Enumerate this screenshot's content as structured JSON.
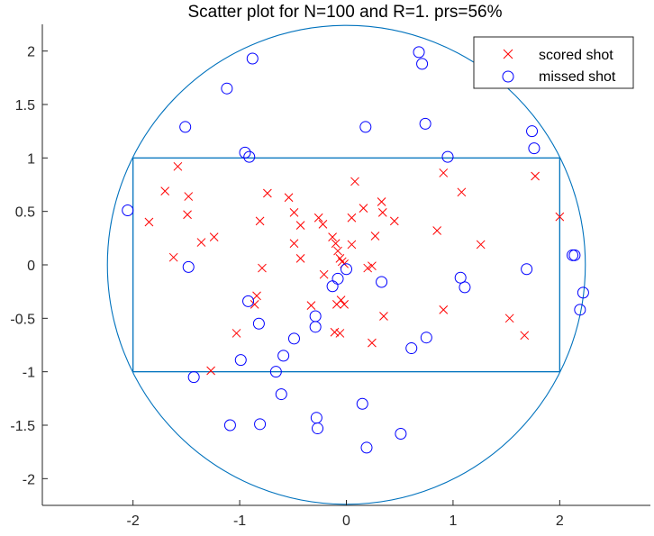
{
  "chart_data": {
    "type": "scatter",
    "title": "Scatter plot for N=100 and R=1. prs=56%",
    "xlabel": "",
    "ylabel": "",
    "xlim": [
      -2.85,
      2.85
    ],
    "ylim": [
      -2.25,
      2.25
    ],
    "x_ticks": [
      "-2",
      "-1",
      "0",
      "1",
      "2"
    ],
    "y_ticks": [
      "2",
      "1.5",
      "1",
      "0.5",
      "0",
      "-0.5",
      "-1",
      "-1.5",
      "-2"
    ],
    "grid": false,
    "legend_position": "top-right",
    "shapes": {
      "rectangle": {
        "x_min": -2,
        "x_max": 2,
        "y_min": -1,
        "y_max": 1,
        "color": "#0072BD"
      },
      "circle": {
        "cx": 0,
        "cy": 0,
        "r": 2.24,
        "color": "#0072BD"
      }
    },
    "series": [
      {
        "name": "scored shot",
        "marker": "x",
        "color": "#FF0000",
        "points": [
          [
            -1.85,
            0.4
          ],
          [
            -1.7,
            0.69
          ],
          [
            -1.58,
            0.92
          ],
          [
            -1.62,
            0.07
          ],
          [
            -1.48,
            0.64
          ],
          [
            -1.49,
            0.47
          ],
          [
            -1.36,
            0.21
          ],
          [
            -1.24,
            0.26
          ],
          [
            -1.27,
            -0.99
          ],
          [
            -1.03,
            -0.64
          ],
          [
            -0.74,
            0.67
          ],
          [
            -0.81,
            0.41
          ],
          [
            -0.79,
            -0.03
          ],
          [
            -0.84,
            -0.29
          ],
          [
            -0.86,
            -0.37
          ],
          [
            -0.54,
            0.63
          ],
          [
            -0.49,
            0.49
          ],
          [
            -0.49,
            0.2
          ],
          [
            -0.43,
            0.37
          ],
          [
            -0.43,
            0.06
          ],
          [
            -0.26,
            0.44
          ],
          [
            -0.22,
            0.38
          ],
          [
            -0.21,
            -0.09
          ],
          [
            -0.33,
            -0.38
          ],
          [
            -0.13,
            0.26
          ],
          [
            -0.1,
            0.2
          ],
          [
            -0.08,
            0.13
          ],
          [
            -0.06,
            0.06
          ],
          [
            -0.04,
            0.03
          ],
          [
            -0.02,
            0.01
          ],
          [
            -0.05,
            -0.33
          ],
          [
            -0.09,
            -0.37
          ],
          [
            -0.02,
            -0.37
          ],
          [
            -0.11,
            -0.63
          ],
          [
            -0.06,
            -0.64
          ],
          [
            0.05,
            0.44
          ],
          [
            0.08,
            0.78
          ],
          [
            0.16,
            0.53
          ],
          [
            0.05,
            0.19
          ],
          [
            0.2,
            -0.03
          ],
          [
            0.24,
            -0.01
          ],
          [
            0.27,
            0.27
          ],
          [
            0.33,
            0.59
          ],
          [
            0.34,
            0.49
          ],
          [
            0.45,
            0.41
          ],
          [
            0.35,
            -0.48
          ],
          [
            0.24,
            -0.73
          ],
          [
            0.85,
            0.32
          ],
          [
            0.91,
            0.86
          ],
          [
            1.08,
            0.68
          ],
          [
            1.26,
            0.19
          ],
          [
            0.91,
            -0.42
          ],
          [
            1.53,
            -0.5
          ],
          [
            1.67,
            -0.66
          ],
          [
            1.77,
            0.83
          ],
          [
            2.0,
            0.45
          ]
        ]
      },
      {
        "name": "missed shot",
        "marker": "o",
        "color": "#0000FF",
        "points": [
          [
            -2.05,
            0.51
          ],
          [
            -1.48,
            -0.02
          ],
          [
            -1.43,
            -1.05
          ],
          [
            -1.51,
            1.29
          ],
          [
            -1.12,
            1.65
          ],
          [
            -0.88,
            1.93
          ],
          [
            -0.95,
            1.05
          ],
          [
            -0.91,
            1.01
          ],
          [
            -0.92,
            -0.34
          ],
          [
            -0.82,
            -0.55
          ],
          [
            -0.99,
            -0.89
          ],
          [
            -0.81,
            -1.49
          ],
          [
            -1.09,
            -1.5
          ],
          [
            -0.66,
            -1.0
          ],
          [
            -0.59,
            -0.85
          ],
          [
            -0.61,
            -1.21
          ],
          [
            -0.49,
            -0.69
          ],
          [
            -0.29,
            -0.48
          ],
          [
            -0.29,
            -0.58
          ],
          [
            -0.28,
            -1.43
          ],
          [
            -0.27,
            -1.53
          ],
          [
            -0.13,
            -0.2
          ],
          [
            -0.08,
            -0.13
          ],
          [
            0.0,
            -0.04
          ],
          [
            0.33,
            -0.16
          ],
          [
            0.15,
            -1.3
          ],
          [
            0.19,
            -1.71
          ],
          [
            0.51,
            -1.58
          ],
          [
            0.61,
            -0.78
          ],
          [
            0.75,
            -0.68
          ],
          [
            0.18,
            1.29
          ],
          [
            0.74,
            1.32
          ],
          [
            0.68,
            1.99
          ],
          [
            0.71,
            1.88
          ],
          [
            0.95,
            1.01
          ],
          [
            1.07,
            -0.12
          ],
          [
            1.11,
            -0.21
          ],
          [
            1.69,
            -0.04
          ],
          [
            1.74,
            1.25
          ],
          [
            1.76,
            1.09
          ],
          [
            2.12,
            0.09
          ],
          [
            2.14,
            0.09
          ],
          [
            2.19,
            -0.42
          ],
          [
            2.22,
            -0.26
          ]
        ]
      }
    ]
  }
}
